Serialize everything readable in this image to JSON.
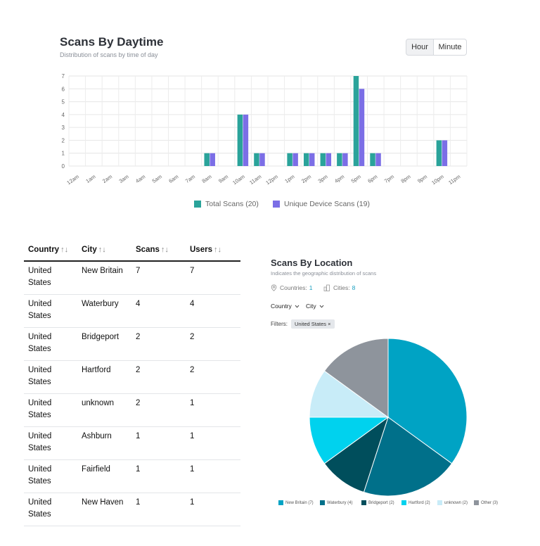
{
  "daytime": {
    "title": "Scans By Daytime",
    "subtitle": "Distribution of scans by time of day",
    "toggle": {
      "hour": "Hour",
      "minute": "Minute"
    },
    "chart_data": {
      "type": "bar",
      "categories": [
        "12am",
        "1am",
        "2am",
        "3am",
        "4am",
        "5am",
        "6am",
        "7am",
        "8am",
        "9am",
        "10am",
        "11am",
        "12pm",
        "1pm",
        "2pm",
        "3pm",
        "4pm",
        "5pm",
        "6pm",
        "7pm",
        "8pm",
        "9pm",
        "10pm",
        "11pm"
      ],
      "series": [
        {
          "name": "Total Scans (20)",
          "color": "#2aa39a",
          "values": [
            0,
            0,
            0,
            0,
            0,
            0,
            0,
            0,
            1,
            0,
            4,
            1,
            0,
            1,
            1,
            1,
            1,
            7,
            1,
            0,
            0,
            0,
            2,
            0
          ]
        },
        {
          "name": "Unique Device Scans (19)",
          "color": "#7b6ee6",
          "values": [
            0,
            0,
            0,
            0,
            0,
            0,
            0,
            0,
            1,
            0,
            4,
            1,
            0,
            1,
            1,
            1,
            1,
            6,
            1,
            0,
            0,
            0,
            2,
            0
          ]
        }
      ],
      "y_ticks": [
        "0",
        "1",
        "2",
        "3",
        "4",
        "5",
        "6",
        "7"
      ],
      "ylim": [
        0,
        7
      ],
      "grid": true,
      "legend": "bottom"
    }
  },
  "table": {
    "headers": [
      {
        "label": "Country",
        "sort": "↑↓"
      },
      {
        "label": "City",
        "sort": "↑↓"
      },
      {
        "label": "Scans",
        "sort": "↑↓"
      },
      {
        "label": "Users",
        "sort": "↑↓"
      }
    ],
    "rows": [
      {
        "country": "United States",
        "city": "New Britain",
        "scans": "7",
        "users": "7"
      },
      {
        "country": "United States",
        "city": "Waterbury",
        "scans": "4",
        "users": "4"
      },
      {
        "country": "United States",
        "city": "Bridgeport",
        "scans": "2",
        "users": "2"
      },
      {
        "country": "United States",
        "city": "Hartford",
        "scans": "2",
        "users": "2"
      },
      {
        "country": "United States",
        "city": "unknown",
        "scans": "2",
        "users": "1"
      },
      {
        "country": "United States",
        "city": "Ashburn",
        "scans": "1",
        "users": "1"
      },
      {
        "country": "United States",
        "city": "Fairfield",
        "scans": "1",
        "users": "1"
      },
      {
        "country": "United States",
        "city": "New Haven",
        "scans": "1",
        "users": "1"
      }
    ]
  },
  "location": {
    "title": "Scans By Location",
    "subtitle": "Indicates the geographic distribution of scans",
    "countries_label": "Countries:",
    "countries_value": "1",
    "cities_label": "Cities:",
    "cities_value": "8",
    "country_dropdown": "Country",
    "city_dropdown": "City",
    "filters_label": "Filters:",
    "filter_chip": "United States ×",
    "chart_data": {
      "type": "pie",
      "slices": [
        {
          "label": "New Britain (7)",
          "value": 7,
          "color": "#00a3c4"
        },
        {
          "label": "Waterbury (4)",
          "value": 4,
          "color": "#00708a"
        },
        {
          "label": "Bridgeport (2)",
          "value": 2,
          "color": "#004e5c"
        },
        {
          "label": "Hartford (2)",
          "value": 2,
          "color": "#00d2ee"
        },
        {
          "label": "unknown (2)",
          "value": 2,
          "color": "#c8ecf8"
        },
        {
          "label": "Other (3)",
          "value": 3,
          "color": "#8e949c"
        }
      ],
      "legend": "bottom"
    }
  }
}
